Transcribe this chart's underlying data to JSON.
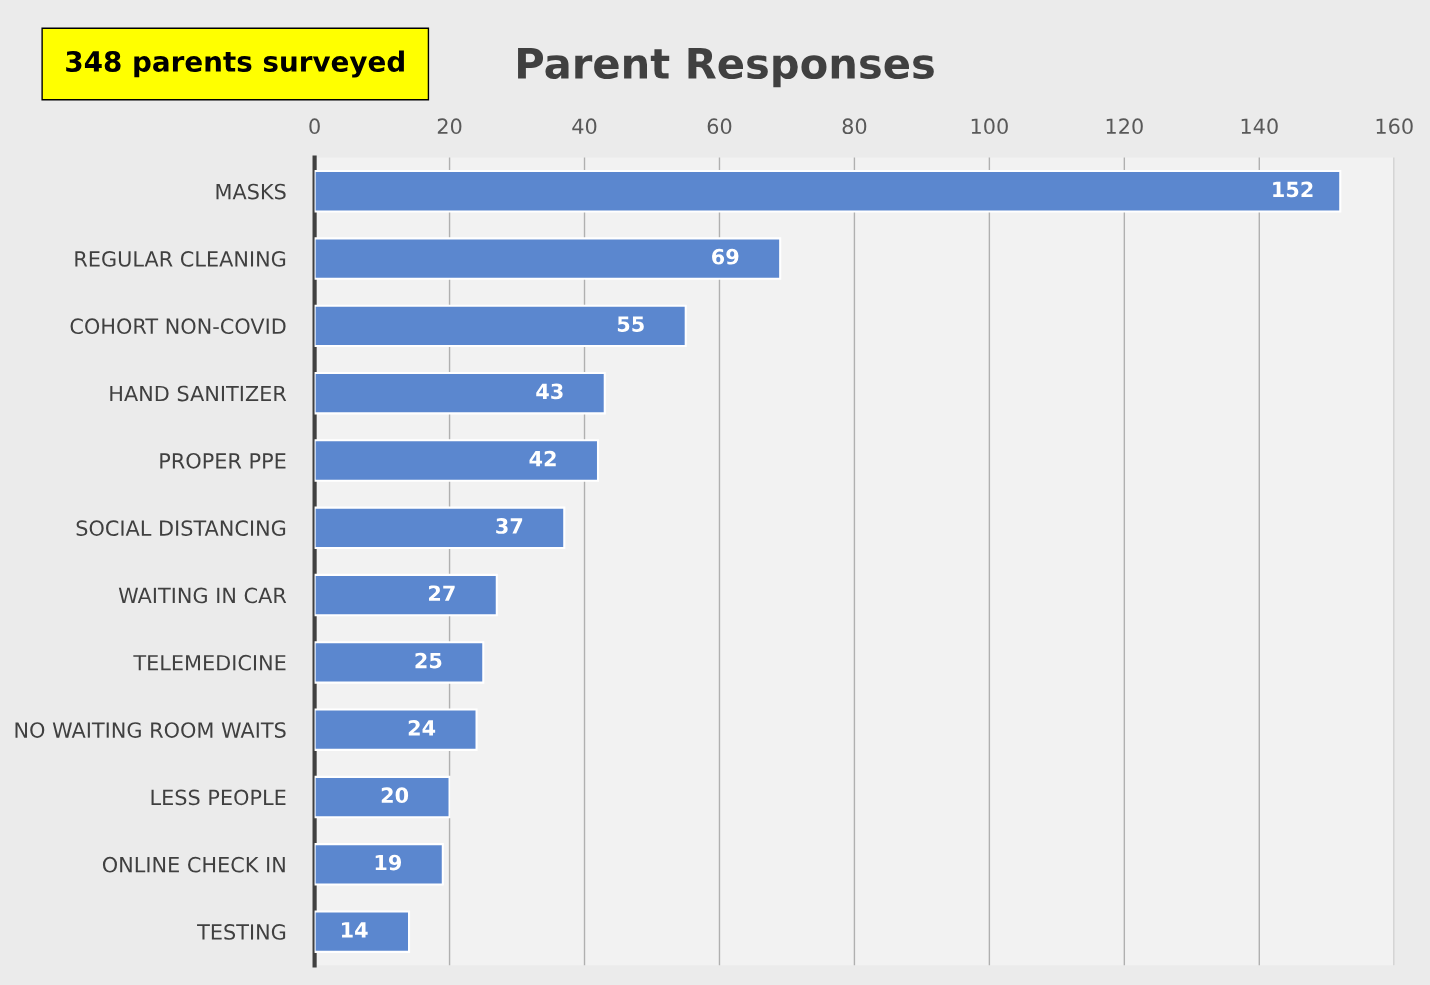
{
  "chart_data": {
    "type": "bar",
    "orientation": "horizontal",
    "title": "Parent Responses",
    "categories": [
      "MASKS",
      "REGULAR CLEANING",
      "COHORT NON-COVID",
      "HAND SANITIZER",
      "PROPER PPE",
      "SOCIAL DISTANCING",
      "WAITING IN CAR",
      "TELEMEDICINE",
      "NO WAITING ROOM WAITS",
      "LESS PEOPLE",
      "ONLINE CHECK IN",
      "TESTING"
    ],
    "values": [
      152,
      69,
      55,
      43,
      42,
      37,
      27,
      25,
      24,
      20,
      19,
      14
    ],
    "color": "#5b87cf",
    "xlim": [
      0,
      160
    ],
    "xticks": [
      0,
      20,
      40,
      60,
      80,
      100,
      120,
      140,
      160
    ],
    "grid": "x",
    "data_labels": true,
    "annotations": [
      "348 parents surveyed"
    ]
  }
}
